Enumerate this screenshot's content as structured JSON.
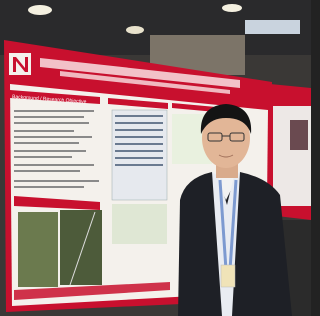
{
  "poster": {
    "section_heading": "Background / Research Objective"
  }
}
